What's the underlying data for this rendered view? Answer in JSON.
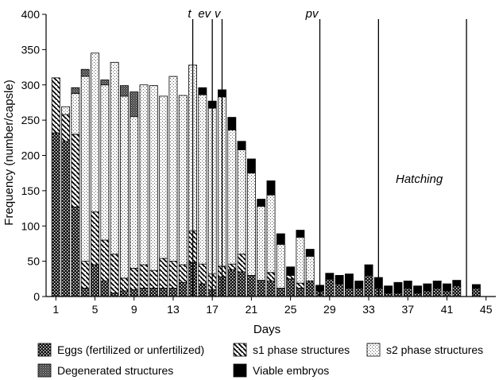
{
  "chart_data": {
    "type": "bar",
    "stacked": true,
    "xlabel": "Days",
    "ylabel": "Frequency (number/capsle)",
    "ylim": [
      0,
      400
    ],
    "yticks": [
      0,
      50,
      100,
      150,
      200,
      250,
      300,
      350,
      400
    ],
    "xlim": [
      0,
      46
    ],
    "xticks": [
      1,
      5,
      9,
      13,
      17,
      21,
      25,
      29,
      33,
      37,
      41,
      45
    ],
    "grid": false,
    "legend_position": "bottom",
    "days": [
      1,
      2,
      3,
      4,
      5,
      6,
      7,
      8,
      9,
      10,
      11,
      12,
      13,
      14,
      15,
      16,
      17,
      18,
      19,
      20,
      21,
      22,
      23,
      24,
      25,
      26,
      27,
      28,
      29,
      30,
      31,
      32,
      33,
      34,
      35,
      36,
      37,
      38,
      39,
      40,
      41,
      42,
      44
    ],
    "series": [
      {
        "name": "Eggs (fertilized or unfertilized)",
        "color": "#1a1a1a",
        "values": [
          232,
          220,
          127,
          12,
          45,
          22,
          5,
          8,
          10,
          12,
          12,
          12,
          12,
          20,
          48,
          18,
          10,
          28,
          38,
          35,
          30,
          23,
          22,
          12,
          25,
          12,
          22,
          8,
          25,
          18,
          12,
          12,
          30,
          12,
          5,
          5,
          12,
          5,
          8,
          12,
          8,
          15,
          12
        ]
      },
      {
        "name": "s1 phase structures",
        "color": "#ffffff",
        "values": [
          78,
          38,
          103,
          38,
          75,
          58,
          55,
          18,
          30,
          33,
          25,
          42,
          38,
          25,
          45,
          28,
          22,
          15,
          8,
          25,
          0,
          0,
          12,
          0,
          5,
          7,
          0,
          0,
          0,
          0,
          0,
          0,
          0,
          0,
          0,
          0,
          0,
          0,
          0,
          0,
          0,
          0,
          0
        ]
      },
      {
        "name": "s2 phase structures",
        "color": "#e8e8e8",
        "values": [
          0,
          11,
          58,
          262,
          225,
          220,
          272,
          258,
          215,
          255,
          262,
          230,
          262,
          240,
          235,
          240,
          235,
          240,
          190,
          148,
          145,
          105,
          110,
          62,
          0,
          65,
          35,
          0,
          0,
          0,
          0,
          0,
          0,
          0,
          0,
          0,
          0,
          0,
          0,
          0,
          0,
          0,
          0
        ]
      },
      {
        "name": "Degenerated structures",
        "color": "#8a8a8a",
        "values": [
          0,
          0,
          8,
          10,
          0,
          7,
          0,
          15,
          35,
          0,
          0,
          0,
          0,
          0,
          0,
          0,
          0,
          0,
          0,
          0,
          0,
          0,
          0,
          0,
          0,
          0,
          0,
          0,
          0,
          0,
          0,
          0,
          0,
          0,
          0,
          0,
          0,
          0,
          0,
          0,
          0,
          0,
          0
        ]
      },
      {
        "name": "Viable embryos",
        "color": "#000000",
        "values": [
          0,
          0,
          0,
          0,
          0,
          0,
          0,
          0,
          0,
          0,
          0,
          0,
          0,
          0,
          0,
          10,
          10,
          10,
          18,
          12,
          20,
          10,
          20,
          15,
          12,
          10,
          10,
          8,
          8,
          12,
          20,
          10,
          15,
          15,
          10,
          15,
          10,
          10,
          10,
          10,
          10,
          8,
          5
        ]
      }
    ],
    "markers": [
      {
        "label": "t",
        "day": 15
      },
      {
        "label": "ev",
        "day": 17
      },
      {
        "label": "v",
        "day": 18
      },
      {
        "label": "pv",
        "day": 28
      },
      {
        "label": "",
        "day": 34
      },
      {
        "label": "",
        "day": 43
      }
    ],
    "annotation": "Hatching"
  }
}
